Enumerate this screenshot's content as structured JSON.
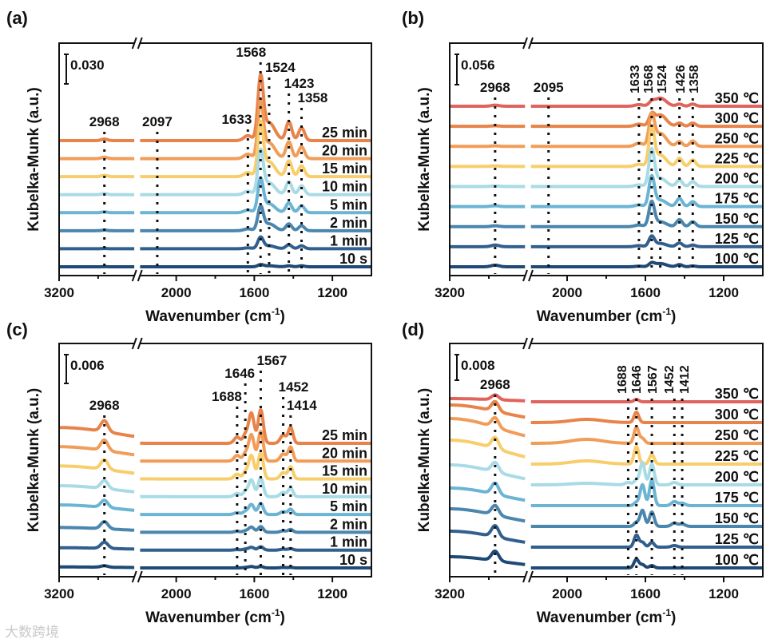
{
  "watermark": "大数跨境",
  "chart_data": [
    {
      "panel": "(a)",
      "type": "line",
      "xlabel": "Wavenumber (cm",
      "xlabel_sup": "-1",
      "xlabel_end": ")",
      "ylabel": "Kubelka-Munk (a.u.)",
      "scale_bar": "0.030",
      "scale_bar_value": 0.03,
      "xlim": [
        3200,
        1000
      ],
      "axis_break": [
        2800,
        2200
      ],
      "x_reversed": true,
      "xticks": [
        3200,
        2000,
        1600,
        1200
      ],
      "xticks_minor": [
        3000,
        1800,
        1400
      ],
      "annotations": [
        {
          "text": "2968",
          "wavenumber": 2968
        },
        {
          "text": "2097",
          "wavenumber": 2097
        },
        {
          "text": "1633",
          "wavenumber": 1633
        },
        {
          "text": "1568",
          "wavenumber": 1568
        },
        {
          "text": "1524",
          "wavenumber": 1524
        },
        {
          "text": "1423",
          "wavenumber": 1423
        },
        {
          "text": "1358",
          "wavenumber": 1358
        }
      ],
      "bands": [
        {
          "center": 2968,
          "width": 15
        },
        {
          "center": 1633,
          "width": 20
        },
        {
          "center": 1568,
          "width": 14
        },
        {
          "center": 1524,
          "width": 30
        },
        {
          "center": 1423,
          "width": 15
        },
        {
          "center": 1358,
          "width": 15
        }
      ],
      "series": [
        {
          "name": "25 min",
          "color": "#e8834a",
          "intensities": [
            0.0016,
            0.005,
            0.061,
            0.018,
            0.019,
            0.013
          ]
        },
        {
          "name": "20 min",
          "color": "#f19d5a",
          "intensities": [
            0.0014,
            0.0045,
            0.054,
            0.016,
            0.017,
            0.012
          ]
        },
        {
          "name": "15 min",
          "color": "#f8cd6c",
          "intensities": [
            0.0013,
            0.0042,
            0.051,
            0.015,
            0.016,
            0.011
          ]
        },
        {
          "name": "10 min",
          "color": "#a8dbe5",
          "intensities": [
            0.0011,
            0.0035,
            0.042,
            0.012,
            0.013,
            0.009
          ]
        },
        {
          "name": "5 min",
          "color": "#6bb4d3",
          "intensities": [
            0.0008,
            0.0026,
            0.032,
            0.009,
            0.01,
            0.007
          ]
        },
        {
          "name": "2 min",
          "color": "#4a86ae",
          "intensities": [
            0.0006,
            0.0019,
            0.023,
            0.007,
            0.007,
            0.005
          ]
        },
        {
          "name": "1 min",
          "color": "#31608f",
          "intensities": [
            0.0003,
            0.0009,
            0.011,
            0.003,
            0.004,
            0.003
          ]
        },
        {
          "name": "10 s",
          "color": "#1f4a75",
          "intensities": [
            0.0001,
            0,
            0.002,
            0.001,
            0.001,
            0.001
          ]
        }
      ]
    },
    {
      "panel": "(b)",
      "type": "line",
      "xlabel": "Wavenumber (cm",
      "xlabel_sup": "-1",
      "xlabel_end": ")",
      "ylabel": "Kubelka-Munk (a.u.)",
      "scale_bar": "0.056",
      "scale_bar_value": 0.056,
      "xlim": [
        3200,
        1000
      ],
      "axis_break": [
        2800,
        2200
      ],
      "x_reversed": true,
      "xticks": [
        3200,
        2000,
        1600,
        1200
      ],
      "xticks_minor": [
        3000,
        1800,
        1400
      ],
      "annotations": [
        {
          "text": "2968",
          "wavenumber": 2968
        },
        {
          "text": "2095",
          "wavenumber": 2095
        },
        {
          "text": "1633",
          "wavenumber": 1633
        },
        {
          "text": "1568",
          "wavenumber": 1568
        },
        {
          "text": "1524",
          "wavenumber": 1524
        },
        {
          "text": "1426",
          "wavenumber": 1426
        },
        {
          "text": "1358",
          "wavenumber": 1358
        }
      ],
      "bands": [
        {
          "center": 2968,
          "width": 20
        },
        {
          "center": 1633,
          "width": 20
        },
        {
          "center": 1568,
          "width": 14
        },
        {
          "center": 1524,
          "width": 30
        },
        {
          "center": 1426,
          "width": 15
        },
        {
          "center": 1358,
          "width": 15
        }
      ],
      "series": [
        {
          "name": "350 ℃",
          "color": "#e0645e",
          "intensities": [
            0.002,
            0.003,
            0.006,
            0.015,
            0.004,
            0.004
          ]
        },
        {
          "name": "300 ℃",
          "color": "#e8834a",
          "intensities": [
            0.001,
            0.004,
            0.018,
            0.021,
            0.006,
            0.006
          ]
        },
        {
          "name": "250 ℃",
          "color": "#f19d5a",
          "intensities": [
            0.001,
            0.006,
            0.053,
            0.024,
            0.009,
            0.01
          ]
        },
        {
          "name": "225 ℃",
          "color": "#f8cd6c",
          "intensities": [
            0.001,
            0.004,
            0.068,
            0.021,
            0.015,
            0.012
          ]
        },
        {
          "name": "200 ℃",
          "color": "#a8dbe5",
          "intensities": [
            0.001,
            0.003,
            0.065,
            0.015,
            0.012,
            0.009
          ]
        },
        {
          "name": "175 ℃",
          "color": "#6bb4d3",
          "intensities": [
            0.0015,
            0.003,
            0.053,
            0.012,
            0.015,
            0.009
          ]
        },
        {
          "name": "150 ℃",
          "color": "#4a86ae",
          "intensities": [
            0.0015,
            0.003,
            0.044,
            0.009,
            0.013,
            0.009
          ]
        },
        {
          "name": "125 ℃",
          "color": "#31608f",
          "intensities": [
            0.003,
            0.002,
            0.018,
            0.006,
            0.007,
            0.003
          ]
        },
        {
          "name": "100 ℃",
          "color": "#1f4a75",
          "intensities": [
            0.003,
            0.001,
            0.006,
            0.006,
            0.004,
            0.0015
          ]
        }
      ]
    },
    {
      "panel": "(c)",
      "type": "line",
      "xlabel": "Wavenumber (cm",
      "xlabel_sup": "-1",
      "xlabel_end": ")",
      "ylabel": "Kubelka-Munk (a.u.)",
      "scale_bar": "0.006",
      "scale_bar_value": 0.006,
      "xlim": [
        3200,
        1000
      ],
      "axis_break": [
        2800,
        2200
      ],
      "x_reversed": true,
      "xticks": [
        3200,
        2000,
        1600,
        1200
      ],
      "xticks_minor": [
        3000,
        1800,
        1400
      ],
      "annotations": [
        {
          "text": "2968",
          "wavenumber": 2968
        },
        {
          "text": "1688",
          "wavenumber": 1688
        },
        {
          "text": "1646",
          "wavenumber": 1646
        },
        {
          "text": "1567",
          "wavenumber": 1567
        },
        {
          "text": "1452",
          "wavenumber": 1452
        },
        {
          "text": "1414",
          "wavenumber": 1414
        }
      ],
      "bands": [
        {
          "center": 3200,
          "width": 300
        },
        {
          "center": 2968,
          "width": 18
        },
        {
          "center": 1688,
          "width": 15
        },
        {
          "center": 1646,
          "width": 12
        },
        {
          "center": 1615,
          "width": 14
        },
        {
          "center": 1567,
          "width": 13
        },
        {
          "center": 1452,
          "width": 15
        },
        {
          "center": 1414,
          "width": 12
        }
      ],
      "series": [
        {
          "name": "25 min",
          "color": "#e8834a",
          "intensities": [
            0.0033,
            0.0023,
            0.0013,
            0.0017,
            0.0063,
            0.007,
            0.0017,
            0.0033
          ]
        },
        {
          "name": "20 min",
          "color": "#f19d5a",
          "intensities": [
            0.003,
            0.0022,
            0.0012,
            0.0015,
            0.0055,
            0.0062,
            0.0015,
            0.0029
          ]
        },
        {
          "name": "15 min",
          "color": "#f8cd6c",
          "intensities": [
            0.0027,
            0.002,
            0.001,
            0.0013,
            0.0049,
            0.0054,
            0.0013,
            0.0025
          ]
        },
        {
          "name": "10 min",
          "color": "#a8dbe5",
          "intensities": [
            0.0023,
            0.0017,
            0.0007,
            0.001,
            0.0035,
            0.0039,
            0.0009,
            0.0018
          ]
        },
        {
          "name": "5 min",
          "color": "#6bb4d3",
          "intensities": [
            0.002,
            0.0015,
            0.0004,
            0.0006,
            0.0021,
            0.0023,
            0.0006,
            0.0011
          ]
        },
        {
          "name": "2 min",
          "color": "#4a86ae",
          "intensities": [
            0.001,
            0.0015,
            0.0002,
            0.0003,
            0.0011,
            0.0012,
            0.0003,
            0.0006
          ]
        },
        {
          "name": "1 min",
          "color": "#31608f",
          "intensities": [
            0.0005,
            0.0013,
            0.0001,
            0.0002,
            0.0006,
            0.0007,
            0.0002,
            0.0003
          ]
        },
        {
          "name": "10 s",
          "color": "#1f4a75",
          "intensities": [
            0.0002,
            0.0003,
            0,
            0.0001,
            0.0003,
            0.0003,
            0.0001,
            0.0001
          ]
        }
      ]
    },
    {
      "panel": "(d)",
      "type": "line",
      "xlabel": "Wavenumber (cm",
      "xlabel_sup": "-1",
      "xlabel_end": ")",
      "ylabel": "Kubelka-Munk (a.u.)",
      "scale_bar": "0.008",
      "scale_bar_value": 0.008,
      "xlim": [
        3200,
        1000
      ],
      "axis_break": [
        2800,
        2200
      ],
      "x_reversed": true,
      "xticks": [
        3200,
        2000,
        1600,
        1200
      ],
      "xticks_minor": [
        3000,
        1800,
        1400
      ],
      "annotations": [
        {
          "text": "2968",
          "wavenumber": 2968
        },
        {
          "text": "1688",
          "wavenumber": 1688
        },
        {
          "text": "1646",
          "wavenumber": 1646
        },
        {
          "text": "1567",
          "wavenumber": 1567
        },
        {
          "text": "1452",
          "wavenumber": 1452
        },
        {
          "text": "1412",
          "wavenumber": 1412
        }
      ],
      "bands": [
        {
          "center": 3200,
          "width": 250
        },
        {
          "center": 2968,
          "width": 18
        },
        {
          "center": 1900,
          "width": 80
        },
        {
          "center": 1688,
          "width": 15
        },
        {
          "center": 1646,
          "width": 12
        },
        {
          "center": 1615,
          "width": 12
        },
        {
          "center": 1567,
          "width": 12
        },
        {
          "center": 1452,
          "width": 15
        },
        {
          "center": 1412,
          "width": 15
        }
      ],
      "series": [
        {
          "name": "350 ℃",
          "color": "#e0645e",
          "intensities": [
            0.001,
            0.0015,
            0,
            0,
            0.00075,
            0,
            0,
            0,
            0
          ]
        },
        {
          "name": "300 ℃",
          "color": "#e8834a",
          "intensities": [
            0.0055,
            0.003,
            0.001,
            0,
            0.00325,
            0,
            0,
            0,
            0
          ]
        },
        {
          "name": "250 ℃",
          "color": "#f19d5a",
          "intensities": [
            0.00775,
            0.003,
            0.00125,
            0,
            0.005,
            0.0015,
            0,
            0,
            0
          ]
        },
        {
          "name": "225 ℃",
          "color": "#f8cd6c",
          "intensities": [
            0.0075,
            0.0035,
            0.001,
            0,
            0.0055,
            0,
            0.003,
            0,
            0
          ]
        },
        {
          "name": "200 ℃",
          "color": "#a8dbe5",
          "intensities": [
            0.00625,
            0.003,
            0.0005,
            0.00075,
            0.0015,
            0.007,
            0.0065,
            0.00075,
            0
          ]
        },
        {
          "name": "175 ℃",
          "color": "#6bb4d3",
          "intensities": [
            0.0055,
            0.0035,
            0,
            0,
            0.001,
            0.0065,
            0.008,
            0.00125,
            0.00075
          ]
        },
        {
          "name": "150 ℃",
          "color": "#4a86ae",
          "intensities": [
            0.0055,
            0.003,
            0,
            0,
            0.00125,
            0.005,
            0.0045,
            0.001,
            0.00075
          ]
        },
        {
          "name": "125 ℃",
          "color": "#31608f",
          "intensities": [
            0.005,
            0.0035,
            0,
            0,
            0.00375,
            0.0015,
            0.0015,
            0.0005,
            0
          ]
        },
        {
          "name": "100 ℃",
          "color": "#1f4a75",
          "intensities": [
            0.0035,
            0.003,
            0,
            0,
            0.00275,
            0.001,
            0.00075,
            0,
            0
          ]
        }
      ]
    }
  ]
}
